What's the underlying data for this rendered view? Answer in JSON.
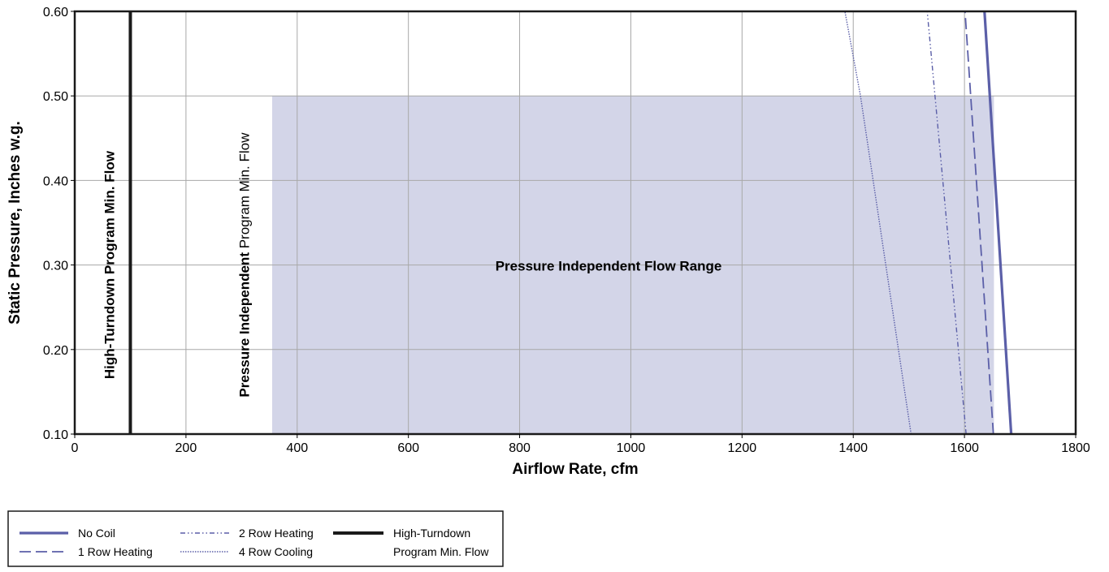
{
  "chart_data": {
    "type": "line",
    "xlabel": "Airflow Rate, cfm",
    "ylabel": "Static Pressure, Inches w.g.",
    "xlim": [
      0,
      1800
    ],
    "ylim": [
      0.1,
      0.6
    ],
    "x_ticks": [
      "0",
      "200",
      "400",
      "600",
      "800",
      "1000",
      "1200",
      "1400",
      "1600",
      "1800"
    ],
    "y_ticks": [
      "0.10",
      "0.20",
      "0.30",
      "0.40",
      "0.50",
      "0.60"
    ],
    "grid": true,
    "region": {
      "label": "Pressure Independent Flow Range",
      "x": [
        355,
        1653
      ],
      "y": [
        0.1,
        0.5
      ],
      "color": "#d3d5e8"
    },
    "min_flow_lines": [
      {
        "label": "High-Turndown Program Min. Flow",
        "x": 100,
        "color": "#1a1a1a"
      }
    ],
    "min_flow_annotation": {
      "bold": "Pressure Independent",
      "normal": " Program Min. Flow",
      "x": 325
    },
    "series": [
      {
        "name": "No Coil",
        "color": "#5b5fa8",
        "style": "solid",
        "x": [
          1684,
          1636
        ],
        "y": [
          0.1,
          0.6
        ]
      },
      {
        "name": "1 Row Heating",
        "color": "#5b5fa8",
        "style": "dashed",
        "x": [
          1652,
          1601
        ],
        "y": [
          0.1,
          0.6
        ]
      },
      {
        "name": "2 Row Heating",
        "color": "#5b5fa8",
        "style": "dashdotdot",
        "x": [
          1603,
          1533
        ],
        "y": [
          0.1,
          0.6
        ]
      },
      {
        "name": "4 Row Cooling",
        "color": "#5b5fa8",
        "style": "dotted",
        "x": [
          1504,
          1413,
          1385
        ],
        "y": [
          0.1,
          0.5,
          0.6
        ]
      }
    ],
    "legend": {
      "placement": "bottom-left",
      "entries": [
        {
          "label": "No Coil",
          "style": "solid",
          "color": "#5b5fa8"
        },
        {
          "label": "1 Row Heating",
          "style": "dashed",
          "color": "#5b5fa8"
        },
        {
          "label": "2 Row Heating",
          "style": "dashdotdot",
          "color": "#5b5fa8"
        },
        {
          "label": "4 Row Cooling",
          "style": "dotted",
          "color": "#5b5fa8"
        },
        {
          "label_line1": "High-Turndown",
          "label_line2": "Program Min. Flow",
          "style": "thick",
          "color": "#1a1a1a"
        }
      ]
    }
  }
}
